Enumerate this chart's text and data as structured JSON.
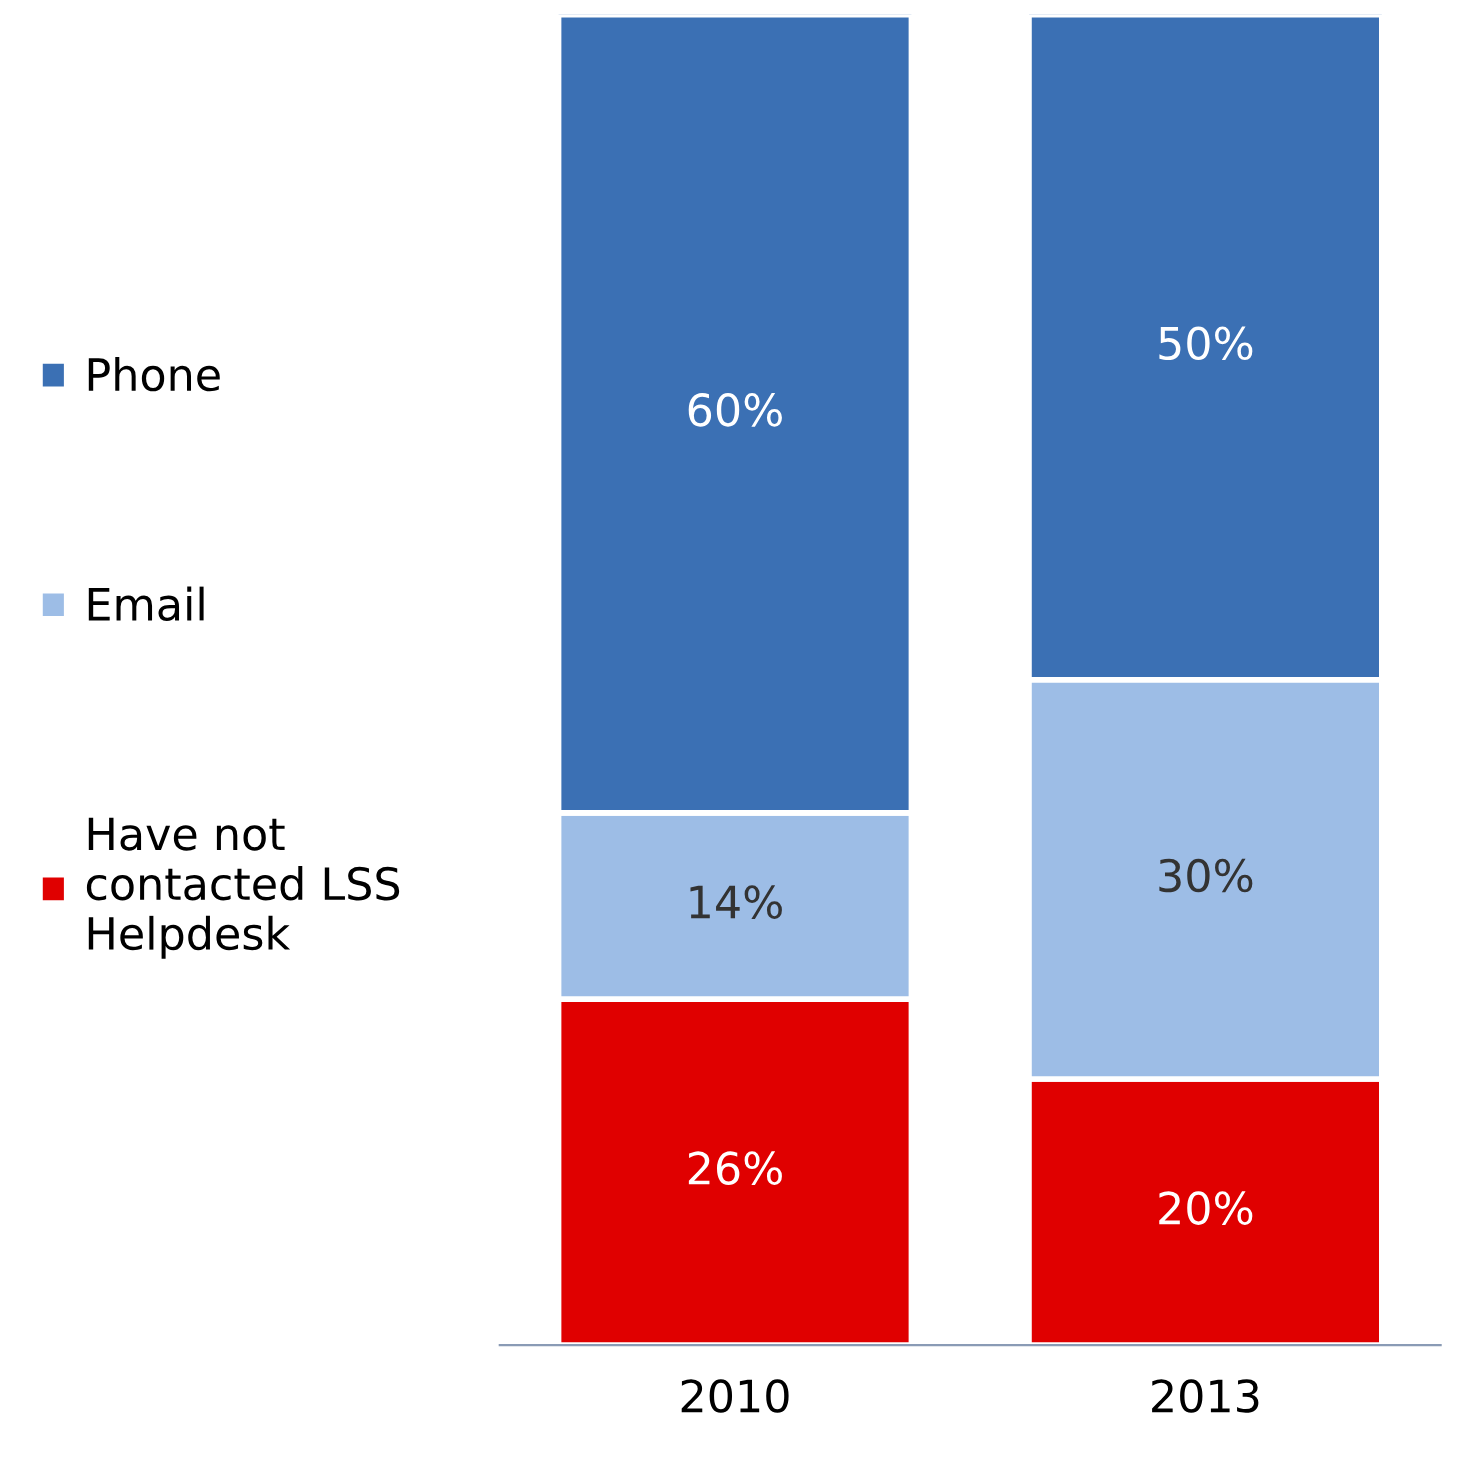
{
  "chart_data": {
    "type": "bar",
    "stacked": true,
    "categories": [
      "2010",
      "2013"
    ],
    "series": [
      {
        "name": "Have not contacted LSS Helpdesk",
        "color": "#e00000",
        "values": [
          26,
          20
        ],
        "value_labels": [
          "26%",
          "20%"
        ]
      },
      {
        "name": "Email",
        "color": "#9dbde6",
        "values": [
          14,
          30
        ],
        "value_labels": [
          "14%",
          "30%"
        ]
      },
      {
        "name": "Phone",
        "color": "#3b70b4",
        "values": [
          60,
          50
        ],
        "value_labels": [
          "60%",
          "50%"
        ]
      }
    ],
    "legend": "left"
  }
}
